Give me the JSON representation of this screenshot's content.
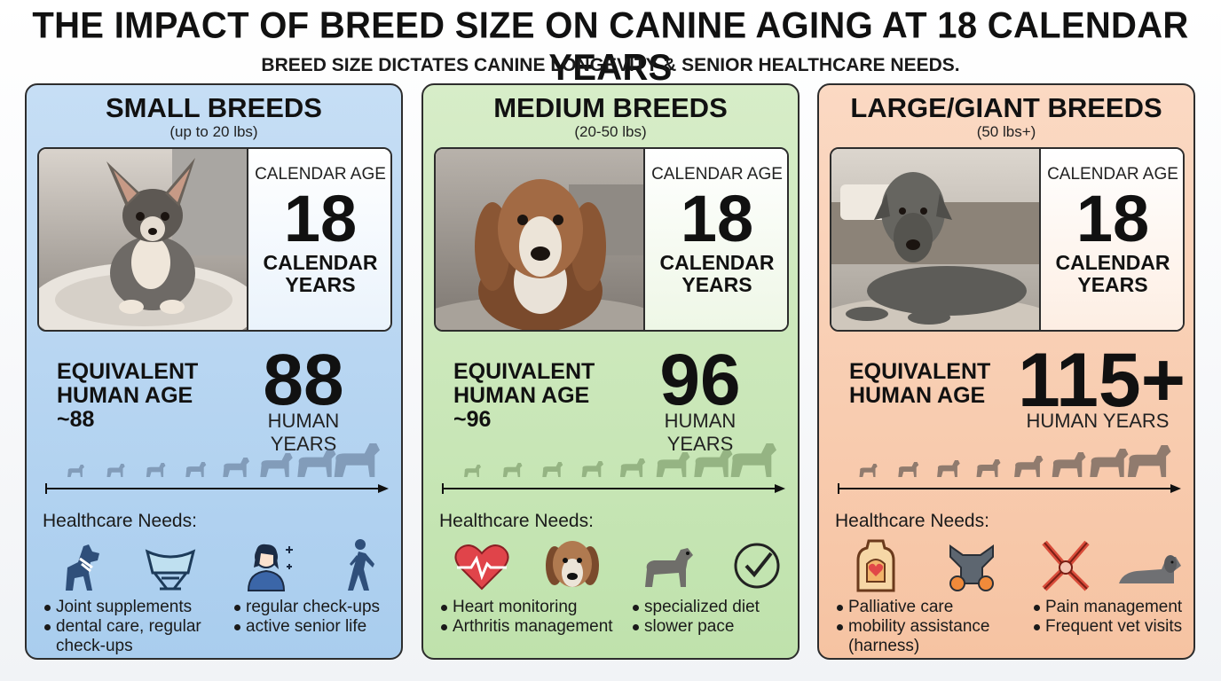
{
  "title": "THE IMPACT OF BREED SIZE ON CANINE AGING AT 18 CALENDAR YEARS",
  "subtitle": "BREED SIZE DICTATES CANINE LONGEVITY & SENIOR HEALTHCARE NEEDS.",
  "panels": [
    {
      "name": "SMALL BREEDS",
      "weight": "(up to 20 lbs)",
      "calendar_label": "CALENDAR AGE",
      "calendar_age": "18",
      "calendar_unit_1": "CALENDAR",
      "calendar_unit_2": "YEARS",
      "equiv_label_1": "EQUIVALENT",
      "equiv_label_2": "HUMAN AGE",
      "equiv_approx": "~88",
      "human_age": "88",
      "human_unit": "HUMAN YEARS",
      "health_title": "Healthcare Needs:",
      "icons": [
        "dog-bandage-icon",
        "dog-bed-icon",
        "veterinarian-icon",
        "walking-person-icon"
      ],
      "needs_left": [
        "Joint supplements",
        "dental care, regular check-ups"
      ],
      "needs_right": [
        "regular check-ups",
        "active senior life"
      ],
      "accent": "#5a6f8c"
    },
    {
      "name": "MEDIUM BREEDS",
      "weight": "(20-50 lbs)",
      "calendar_label": "CALENDAR AGE",
      "calendar_age": "18",
      "calendar_unit_1": "CALENDAR",
      "calendar_unit_2": "YEARS",
      "equiv_label_1": "EQUIVALENT",
      "equiv_label_2": "HUMAN AGE",
      "equiv_approx": "~96",
      "human_age": "96",
      "human_unit": "HUMAN YEARS",
      "health_title": "Healthcare Needs:",
      "icons": [
        "heart-monitor-icon",
        "beagle-face-icon",
        "senior-dog-icon",
        "checkmark-icon"
      ],
      "needs_left": [
        "Heart monitoring",
        "Arthritis management"
      ],
      "needs_right": [
        "specialized diet",
        "slower pace"
      ],
      "accent": "#6b8a5a"
    },
    {
      "name": "LARGE/GIANT BREEDS",
      "weight": "(50 lbs+)",
      "calendar_label": "CALENDAR AGE",
      "calendar_age": "18",
      "calendar_unit_1": "CALENDAR",
      "calendar_unit_2": "YEARS",
      "equiv_label_1": "EQUIVALENT",
      "equiv_label_2": "HUMAN AGE",
      "equiv_approx": "",
      "human_age": "115+",
      "human_unit": "HUMAN YEARS",
      "health_title": "Healthcare Needs:",
      "icons": [
        "palliative-care-icon",
        "mobility-harness-icon",
        "pain-management-harness-icon",
        "resting-dog-icon"
      ],
      "needs_left": [
        "Palliative care",
        "mobility assistance (harness)"
      ],
      "needs_right": [
        "Pain management",
        "Frequent vet visits"
      ],
      "accent": "#3a3a3a"
    }
  ]
}
